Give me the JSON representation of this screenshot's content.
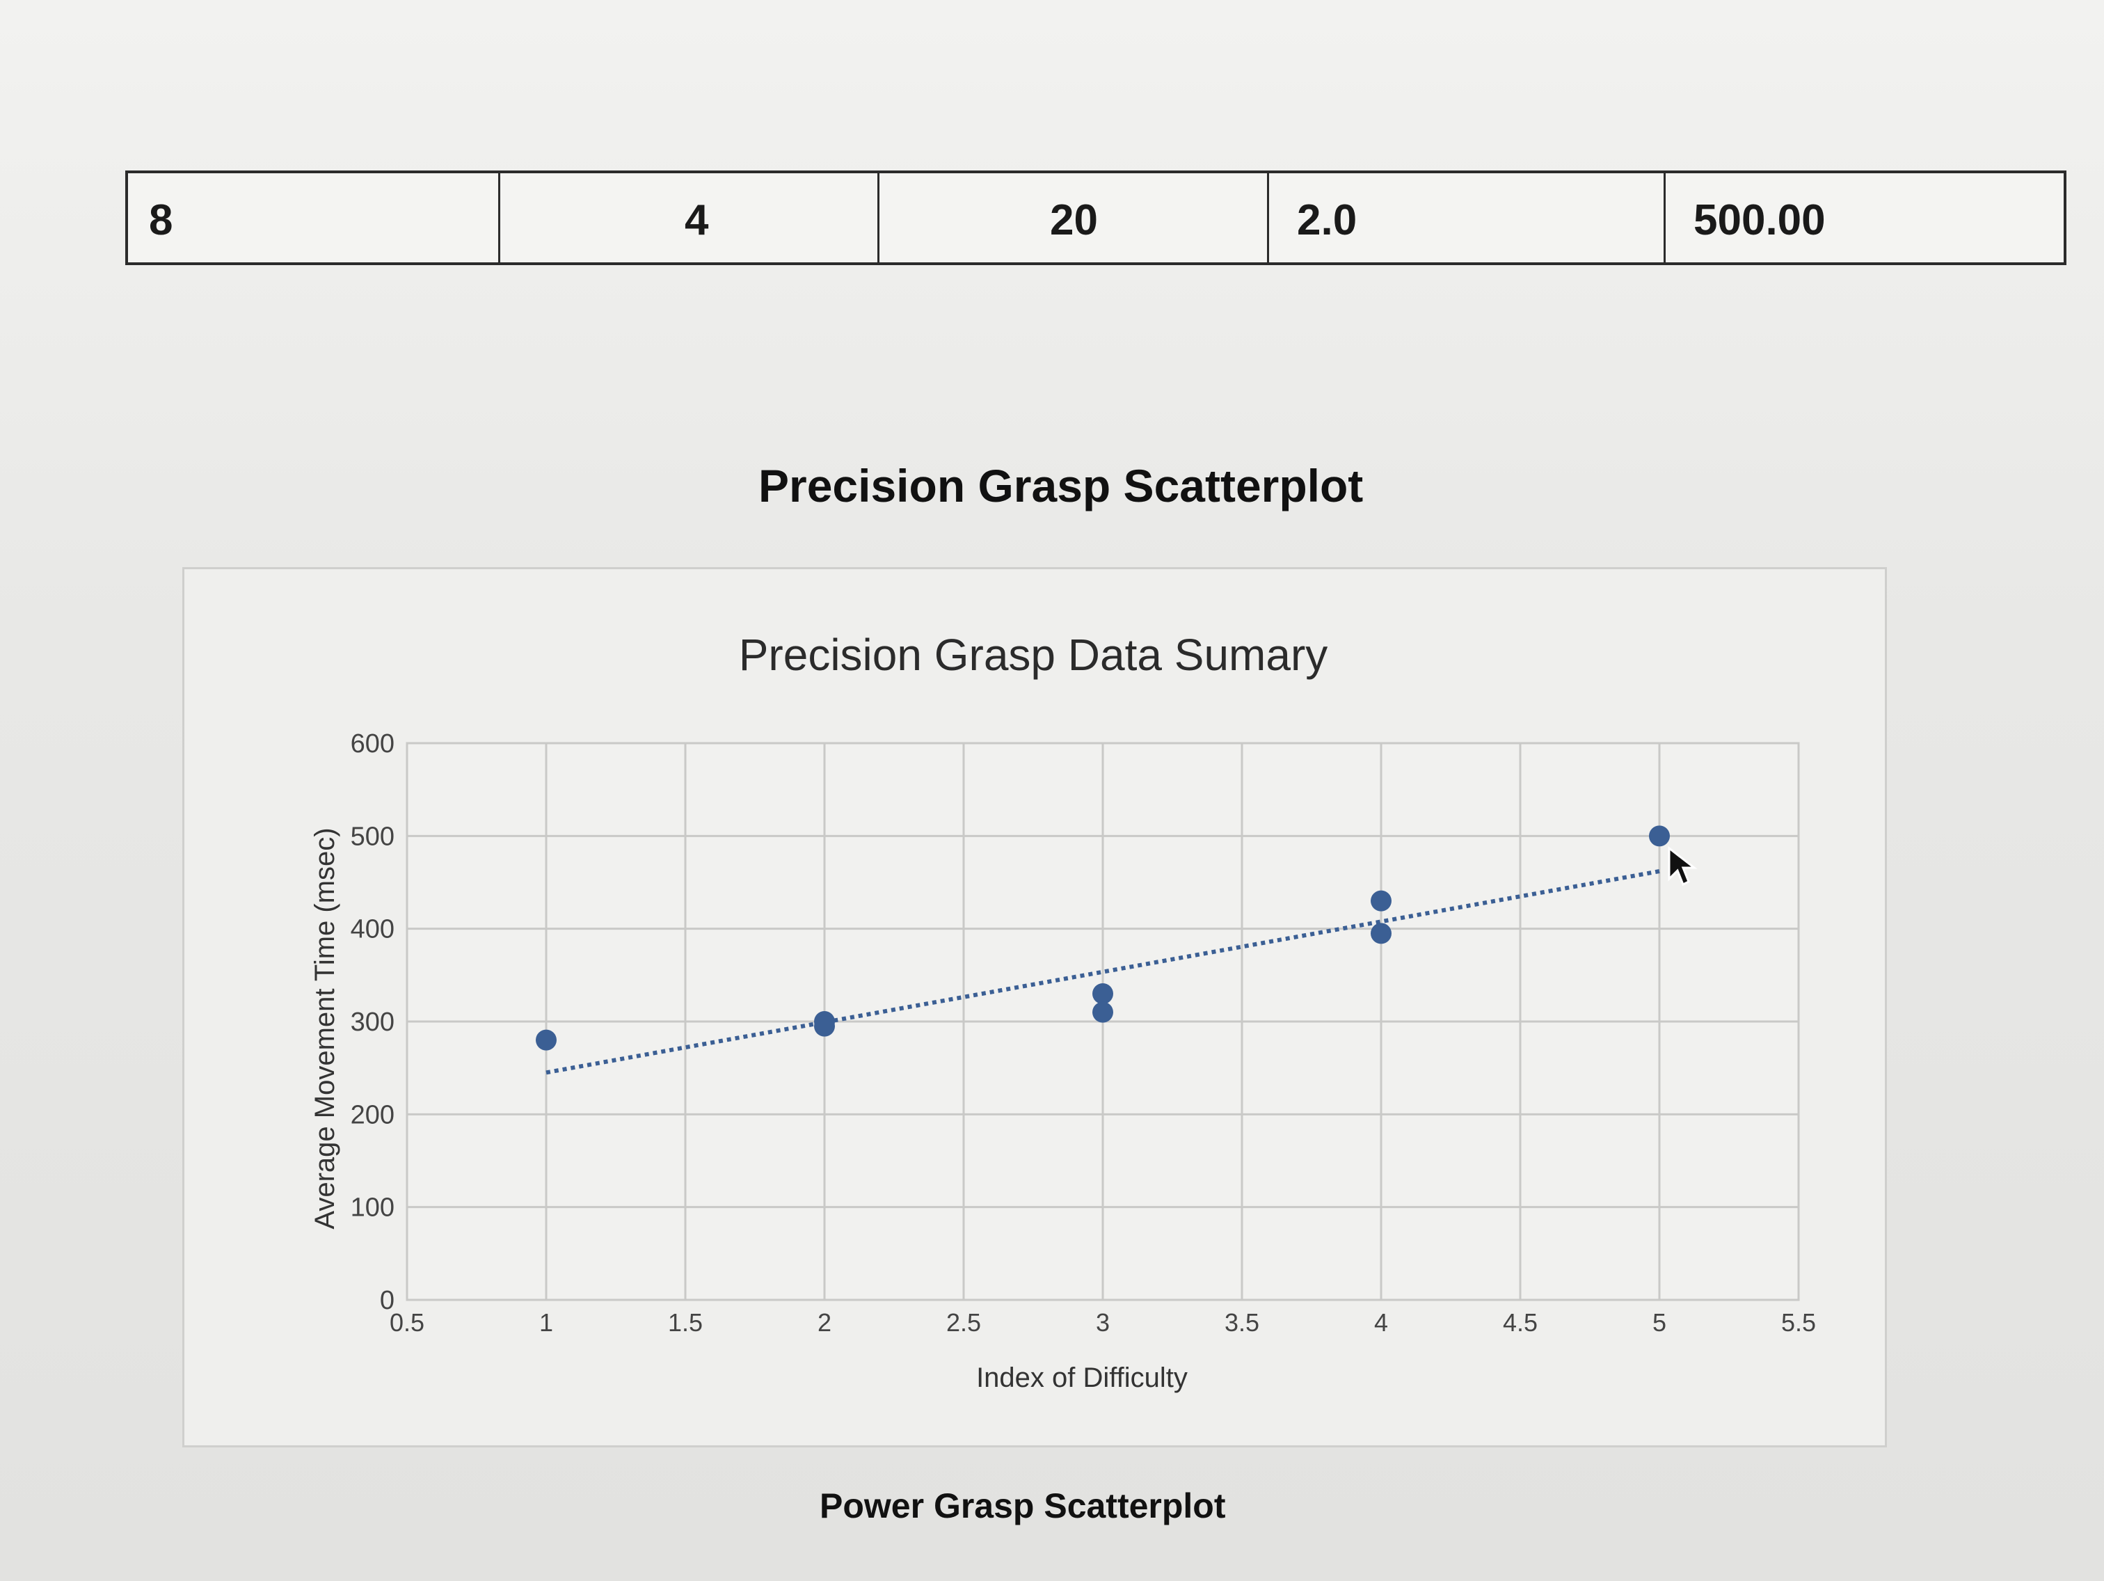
{
  "table_row": [
    "8",
    "4",
    "20",
    "2.0",
    "500.00"
  ],
  "headings": {
    "precision": "Precision Grasp Scatterplot",
    "power": "Power Grasp Scatterplot"
  },
  "chart_data": {
    "type": "scatter",
    "title": "Precision Grasp Data Sumary",
    "xlabel": "Index of Difficulty",
    "ylabel": "Average Movement Time (msec)",
    "xlim": [
      0.5,
      5.5
    ],
    "ylim": [
      0,
      600
    ],
    "xticks": [
      0.5,
      1,
      1.5,
      2,
      2.5,
      3,
      3.5,
      4,
      4.5,
      5,
      5.5
    ],
    "xtick_labels": [
      "0.5",
      "1",
      "1.5",
      "2",
      "2.5",
      "3",
      "3.5",
      "4",
      "4.5",
      "5",
      "5.5"
    ],
    "yticks": [
      0,
      100,
      200,
      300,
      400,
      500,
      600
    ],
    "ytick_labels": [
      "0",
      "100",
      "200",
      "300",
      "400",
      "500",
      "600"
    ],
    "grid": true,
    "series": [
      {
        "points": [
          {
            "x": 1.0,
            "y": 280
          },
          {
            "x": 2.0,
            "y": 300
          },
          {
            "x": 2.0,
            "y": 295
          },
          {
            "x": 3.0,
            "y": 330
          },
          {
            "x": 3.0,
            "y": 310
          },
          {
            "x": 4.0,
            "y": 430
          },
          {
            "x": 4.0,
            "y": 395
          },
          {
            "x": 5.0,
            "y": 500
          }
        ],
        "color": "#3b5f94"
      }
    ],
    "trendline": {
      "style": "dotted",
      "color": "#3b5f94",
      "x": [
        1.0,
        5.0
      ],
      "y": [
        245,
        462
      ]
    }
  }
}
